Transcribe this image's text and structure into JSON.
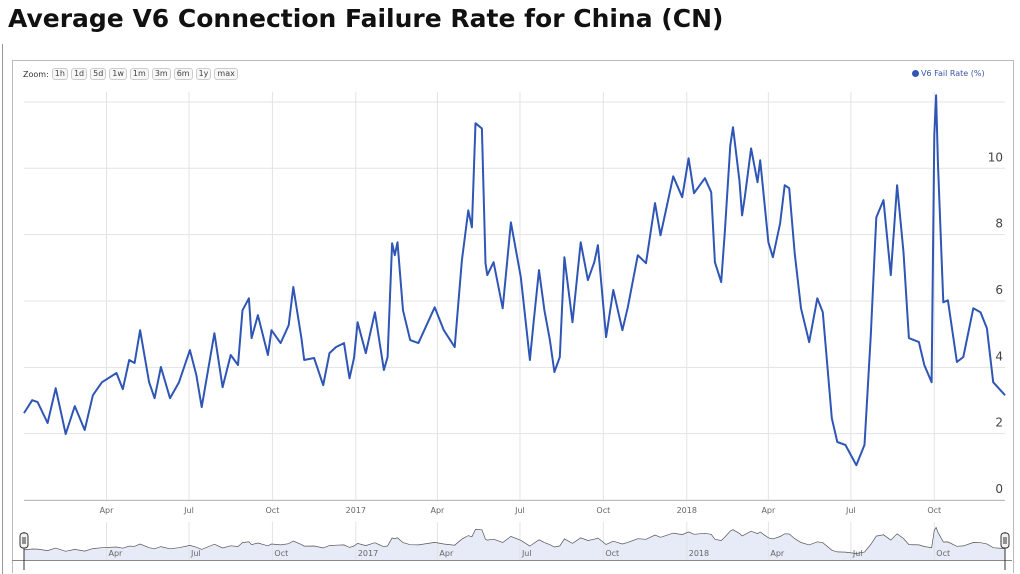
{
  "title": "Average V6 Connection Failure Rate for China (CN)",
  "zoom": {
    "label": "Zoom:",
    "buttons": [
      "1h",
      "1d",
      "5d",
      "1w",
      "1m",
      "3m",
      "6m",
      "1y",
      "max"
    ]
  },
  "colors": {
    "series": "#2f56b5",
    "navigator_fill": "#e6ebf7",
    "grid": "#e3e3e3"
  },
  "chart_data": {
    "type": "line",
    "title": "Average V6 Connection Failure Rate for China (CN)",
    "xlabel": "",
    "ylabel": "",
    "xlim": [
      "2016-01-01",
      "2018-12-18"
    ],
    "ylim": [
      0,
      12.3
    ],
    "y_ticks": [
      0,
      2,
      4,
      6,
      8,
      10
    ],
    "x_ticks": [
      {
        "date": "2016-04-01",
        "label": "Apr"
      },
      {
        "date": "2016-07-01",
        "label": "Jul"
      },
      {
        "date": "2016-10-01",
        "label": "Oct"
      },
      {
        "date": "2017-01-01",
        "label": "2017"
      },
      {
        "date": "2017-04-01",
        "label": "Apr"
      },
      {
        "date": "2017-07-01",
        "label": "Jul"
      },
      {
        "date": "2017-10-01",
        "label": "Oct"
      },
      {
        "date": "2018-01-01",
        "label": "2018"
      },
      {
        "date": "2018-04-01",
        "label": "Apr"
      },
      {
        "date": "2018-07-01",
        "label": "Jul"
      },
      {
        "date": "2018-10-01",
        "label": "Oct"
      }
    ],
    "grid": true,
    "legend_position": "top-right",
    "series": [
      {
        "name": "V6 Fail Rate (%)",
        "points": [
          [
            "2016-01-01",
            2.62
          ],
          [
            "2016-01-10",
            3.01
          ],
          [
            "2016-01-16",
            2.95
          ],
          [
            "2016-01-27",
            2.32
          ],
          [
            "2016-02-05",
            3.37
          ],
          [
            "2016-02-16",
            1.99
          ],
          [
            "2016-02-26",
            2.83
          ],
          [
            "2016-03-08",
            2.11
          ],
          [
            "2016-03-17",
            3.16
          ],
          [
            "2016-03-27",
            3.55
          ],
          [
            "2016-04-12",
            3.83
          ],
          [
            "2016-04-19",
            3.34
          ],
          [
            "2016-04-26",
            4.22
          ],
          [
            "2016-05-02",
            4.13
          ],
          [
            "2016-05-08",
            5.12
          ],
          [
            "2016-05-18",
            3.55
          ],
          [
            "2016-05-24",
            3.07
          ],
          [
            "2016-05-31",
            4.01
          ],
          [
            "2016-06-10",
            3.07
          ],
          [
            "2016-06-20",
            3.55
          ],
          [
            "2016-07-02",
            4.52
          ],
          [
            "2016-07-09",
            3.77
          ],
          [
            "2016-07-15",
            2.8
          ],
          [
            "2016-07-29",
            5.03
          ],
          [
            "2016-08-07",
            3.4
          ],
          [
            "2016-08-16",
            4.37
          ],
          [
            "2016-08-24",
            4.07
          ],
          [
            "2016-08-29",
            5.72
          ],
          [
            "2016-09-05",
            6.08
          ],
          [
            "2016-09-08",
            4.88
          ],
          [
            "2016-09-15",
            5.57
          ],
          [
            "2016-09-26",
            4.37
          ],
          [
            "2016-09-30",
            5.12
          ],
          [
            "2016-10-10",
            4.73
          ],
          [
            "2016-10-19",
            5.27
          ],
          [
            "2016-10-24",
            6.42
          ],
          [
            "2016-11-02",
            4.88
          ],
          [
            "2016-11-05",
            4.22
          ],
          [
            "2016-11-16",
            4.28
          ],
          [
            "2016-11-26",
            3.46
          ],
          [
            "2016-12-03",
            4.43
          ],
          [
            "2016-12-10",
            4.61
          ],
          [
            "2016-12-19",
            4.73
          ],
          [
            "2016-12-25",
            3.67
          ],
          [
            "2016-12-30",
            4.28
          ],
          [
            "2017-01-03",
            5.36
          ],
          [
            "2017-01-12",
            4.43
          ],
          [
            "2017-01-22",
            5.66
          ],
          [
            "2017-02-01",
            3.92
          ],
          [
            "2017-02-05",
            4.31
          ],
          [
            "2017-02-10",
            7.74
          ],
          [
            "2017-02-13",
            7.38
          ],
          [
            "2017-02-16",
            7.77
          ],
          [
            "2017-02-22",
            5.72
          ],
          [
            "2017-03-02",
            4.82
          ],
          [
            "2017-03-11",
            4.73
          ],
          [
            "2017-03-29",
            5.81
          ],
          [
            "2017-04-08",
            5.12
          ],
          [
            "2017-04-20",
            4.61
          ],
          [
            "2017-04-28",
            7.23
          ],
          [
            "2017-05-05",
            8.73
          ],
          [
            "2017-05-09",
            8.22
          ],
          [
            "2017-05-13",
            11.36
          ],
          [
            "2017-05-20",
            11.2
          ],
          [
            "2017-05-24",
            7.14
          ],
          [
            "2017-05-26",
            6.78
          ],
          [
            "2017-06-02",
            7.17
          ],
          [
            "2017-06-12",
            5.78
          ],
          [
            "2017-06-21",
            8.37
          ],
          [
            "2017-07-02",
            6.72
          ],
          [
            "2017-07-12",
            4.22
          ],
          [
            "2017-07-16",
            5.33
          ],
          [
            "2017-07-22",
            6.93
          ],
          [
            "2017-07-28",
            5.72
          ],
          [
            "2017-08-03",
            4.82
          ],
          [
            "2017-08-08",
            3.86
          ],
          [
            "2017-08-14",
            4.31
          ],
          [
            "2017-08-19",
            7.32
          ],
          [
            "2017-08-28",
            5.36
          ],
          [
            "2017-09-06",
            7.77
          ],
          [
            "2017-09-14",
            6.63
          ],
          [
            "2017-09-21",
            7.17
          ],
          [
            "2017-09-25",
            7.68
          ],
          [
            "2017-10-04",
            4.91
          ],
          [
            "2017-10-12",
            6.33
          ],
          [
            "2017-10-22",
            5.12
          ],
          [
            "2017-10-28",
            5.81
          ],
          [
            "2017-11-08",
            7.38
          ],
          [
            "2017-11-17",
            7.14
          ],
          [
            "2017-11-27",
            8.95
          ],
          [
            "2017-12-03",
            7.98
          ],
          [
            "2017-12-09",
            8.73
          ],
          [
            "2017-12-17",
            9.76
          ],
          [
            "2017-12-27",
            9.13
          ],
          [
            "2018-01-03",
            10.3
          ],
          [
            "2018-01-09",
            9.25
          ],
          [
            "2018-01-21",
            9.7
          ],
          [
            "2018-01-28",
            9.28
          ],
          [
            "2018-02-01",
            7.17
          ],
          [
            "2018-02-08",
            6.57
          ],
          [
            "2018-02-12",
            8.07
          ],
          [
            "2018-02-18",
            10.69
          ],
          [
            "2018-02-21",
            11.24
          ],
          [
            "2018-02-28",
            9.64
          ],
          [
            "2018-03-03",
            8.58
          ],
          [
            "2018-03-06",
            9.13
          ],
          [
            "2018-03-13",
            10.6
          ],
          [
            "2018-03-20",
            9.58
          ],
          [
            "2018-03-23",
            10.24
          ],
          [
            "2018-04-01",
            7.77
          ],
          [
            "2018-04-06",
            7.32
          ],
          [
            "2018-04-14",
            8.34
          ],
          [
            "2018-04-19",
            9.49
          ],
          [
            "2018-04-24",
            9.4
          ],
          [
            "2018-04-30",
            7.44
          ],
          [
            "2018-05-07",
            5.78
          ],
          [
            "2018-05-16",
            4.76
          ],
          [
            "2018-05-25",
            6.08
          ],
          [
            "2018-05-31",
            5.66
          ],
          [
            "2018-06-10",
            2.47
          ],
          [
            "2018-06-16",
            1.75
          ],
          [
            "2018-06-25",
            1.66
          ],
          [
            "2018-07-07",
            1.05
          ],
          [
            "2018-07-16",
            1.66
          ],
          [
            "2018-07-23",
            4.97
          ],
          [
            "2018-07-29",
            8.52
          ],
          [
            "2018-08-06",
            9.04
          ],
          [
            "2018-08-14",
            6.78
          ],
          [
            "2018-08-21",
            9.49
          ],
          [
            "2018-08-28",
            7.47
          ],
          [
            "2018-09-03",
            4.88
          ],
          [
            "2018-09-14",
            4.76
          ],
          [
            "2018-09-20",
            4.07
          ],
          [
            "2018-09-28",
            3.55
          ],
          [
            "2018-10-01",
            11.0
          ],
          [
            "2018-10-03",
            12.2
          ],
          [
            "2018-10-05",
            10.18
          ],
          [
            "2018-10-11",
            5.96
          ],
          [
            "2018-10-16",
            6.02
          ],
          [
            "2018-10-26",
            4.16
          ],
          [
            "2018-11-02",
            4.31
          ],
          [
            "2018-11-13",
            5.78
          ],
          [
            "2018-11-21",
            5.66
          ],
          [
            "2018-11-28",
            5.18
          ],
          [
            "2018-12-05",
            3.55
          ],
          [
            "2018-12-18",
            3.16
          ]
        ]
      }
    ]
  }
}
